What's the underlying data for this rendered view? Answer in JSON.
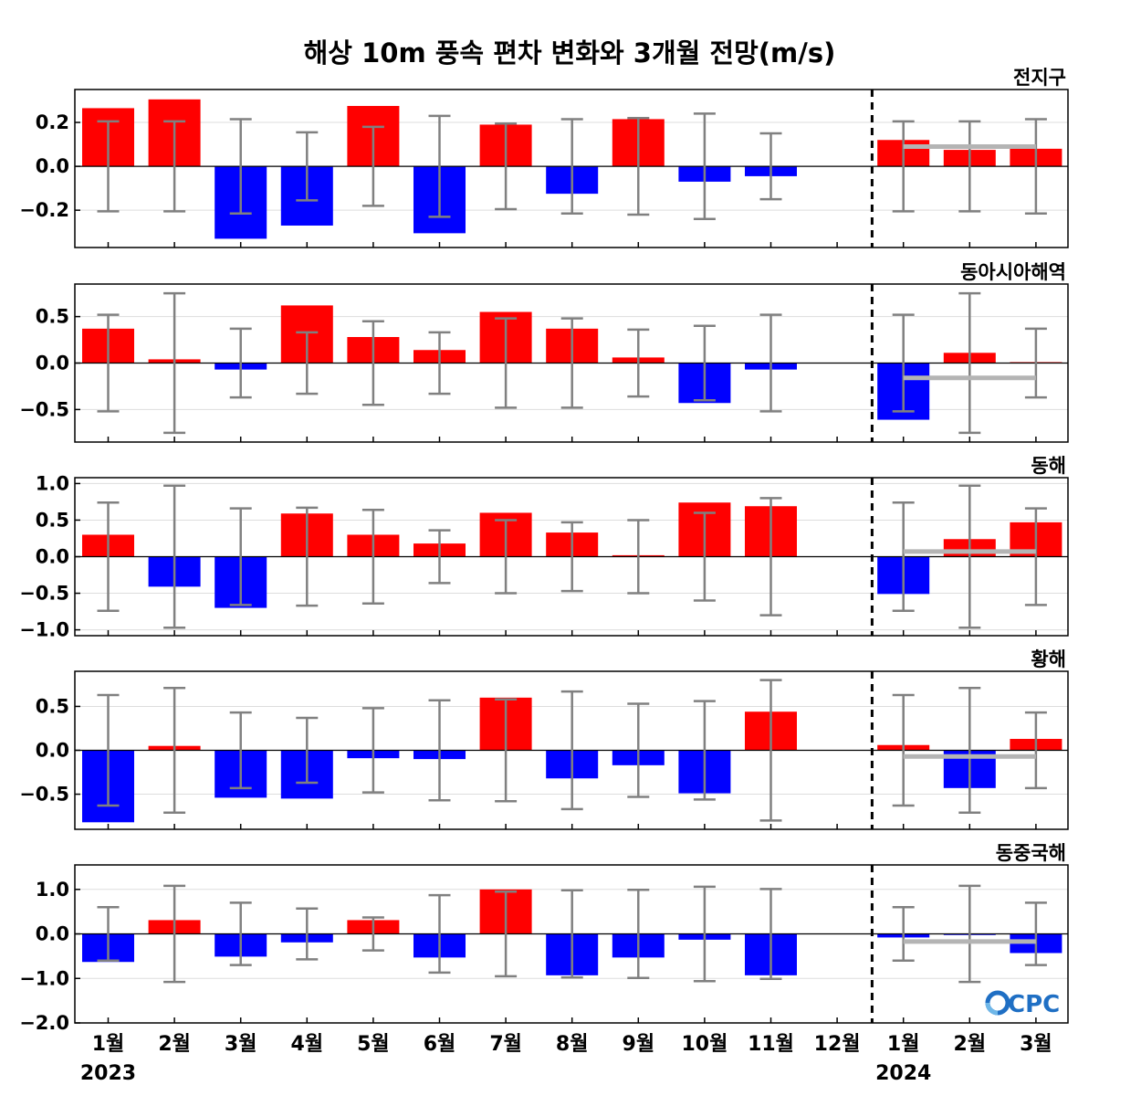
{
  "title": "해상 10m 풍속 편차 변화와 3개월 전망(m/s)",
  "logo": "OCPC",
  "colors": {
    "positive": "#ff0000",
    "negative": "#0000ff",
    "errorbar": "#808080",
    "forecast_line": "#b4b4b4",
    "grid": "#dddddd"
  },
  "chart_data": {
    "type": "bar",
    "categories": [
      "1월",
      "2월",
      "3월",
      "4월",
      "5월",
      "6월",
      "7월",
      "8월",
      "9월",
      "10월",
      "11월",
      "12월",
      "1월",
      "2월",
      "3월"
    ],
    "years": [
      {
        "label": "2023",
        "under_index": 0
      },
      {
        "label": "2024",
        "under_index": 12
      }
    ],
    "forecast_divider_after_index": 11,
    "panels": [
      {
        "name": "전지구",
        "ylim": [
          -0.37,
          0.35
        ],
        "yticks": [
          -0.2,
          0.0,
          0.2
        ],
        "yticklabels": [
          "−0.2",
          "0.0",
          "0.2"
        ],
        "values": [
          0.265,
          0.305,
          -0.33,
          -0.27,
          0.275,
          -0.305,
          0.19,
          -0.125,
          0.215,
          -0.07,
          -0.045,
          0.0,
          0.12,
          0.075,
          0.08
        ],
        "error_half_range": [
          0.205,
          0.205,
          0.215,
          0.155,
          0.18,
          0.23,
          0.195,
          0.215,
          0.22,
          0.24,
          0.15,
          null,
          0.205,
          0.205,
          0.215
        ],
        "forecast_mean": 0.09
      },
      {
        "name": "동아시아해역",
        "ylim": [
          -0.85,
          0.85
        ],
        "yticks": [
          -0.5,
          0.0,
          0.5
        ],
        "yticklabels": [
          "−0.5",
          "0.0",
          "0.5"
        ],
        "values": [
          0.37,
          0.04,
          -0.07,
          0.62,
          0.28,
          0.14,
          0.55,
          0.37,
          0.06,
          -0.43,
          -0.07,
          0.0,
          -0.61,
          0.11,
          0.01
        ],
        "error_half_range": [
          0.52,
          0.75,
          0.37,
          0.33,
          0.45,
          0.33,
          0.48,
          0.48,
          0.36,
          0.4,
          0.52,
          null,
          0.52,
          0.75,
          0.37
        ],
        "forecast_mean": -0.16
      },
      {
        "name": "동해",
        "ylim": [
          -1.08,
          1.08
        ],
        "yticks": [
          -1.0,
          -0.5,
          0.0,
          0.5,
          1.0
        ],
        "yticklabels": [
          "−1.0",
          "−0.5",
          "0.0",
          "0.5",
          "1.0"
        ],
        "values": [
          0.3,
          -0.41,
          -0.7,
          0.59,
          0.3,
          0.18,
          0.6,
          0.33,
          0.02,
          0.74,
          0.69,
          0.0,
          -0.51,
          0.24,
          0.47
        ],
        "error_half_range": [
          0.74,
          0.97,
          0.66,
          0.67,
          0.64,
          0.36,
          0.5,
          0.47,
          0.5,
          0.6,
          0.8,
          null,
          0.74,
          0.97,
          0.66
        ],
        "forecast_mean": 0.07
      },
      {
        "name": "황해",
        "ylim": [
          -0.9,
          0.9
        ],
        "yticks": [
          -0.5,
          0.0,
          0.5
        ],
        "yticklabels": [
          "−0.5",
          "0.0",
          "0.5"
        ],
        "values": [
          -0.82,
          0.05,
          -0.54,
          -0.55,
          -0.09,
          -0.1,
          0.6,
          -0.32,
          -0.17,
          -0.49,
          0.44,
          0.0,
          0.06,
          -0.43,
          0.13
        ],
        "error_half_range": [
          0.63,
          0.71,
          0.43,
          0.37,
          0.48,
          0.57,
          0.58,
          0.67,
          0.53,
          0.56,
          0.8,
          null,
          0.63,
          0.71,
          0.43
        ],
        "forecast_mean": -0.07
      },
      {
        "name": "동중국해",
        "ylim": [
          -2.0,
          1.55
        ],
        "yticks": [
          -2.0,
          -1.0,
          0.0,
          1.0
        ],
        "yticklabels": [
          "−2.0",
          "−1.0",
          "0.0",
          "1.0"
        ],
        "values": [
          -0.63,
          0.31,
          -0.51,
          -0.19,
          0.31,
          -0.53,
          1.0,
          -0.93,
          -0.53,
          -0.13,
          -0.93,
          0.0,
          -0.08,
          -0.01,
          -0.43
        ],
        "error_half_range": [
          0.6,
          1.08,
          0.7,
          0.57,
          0.37,
          0.87,
          0.95,
          0.98,
          0.99,
          1.06,
          1.01,
          null,
          0.6,
          1.08,
          0.7
        ],
        "forecast_mean": -0.17
      }
    ]
  }
}
